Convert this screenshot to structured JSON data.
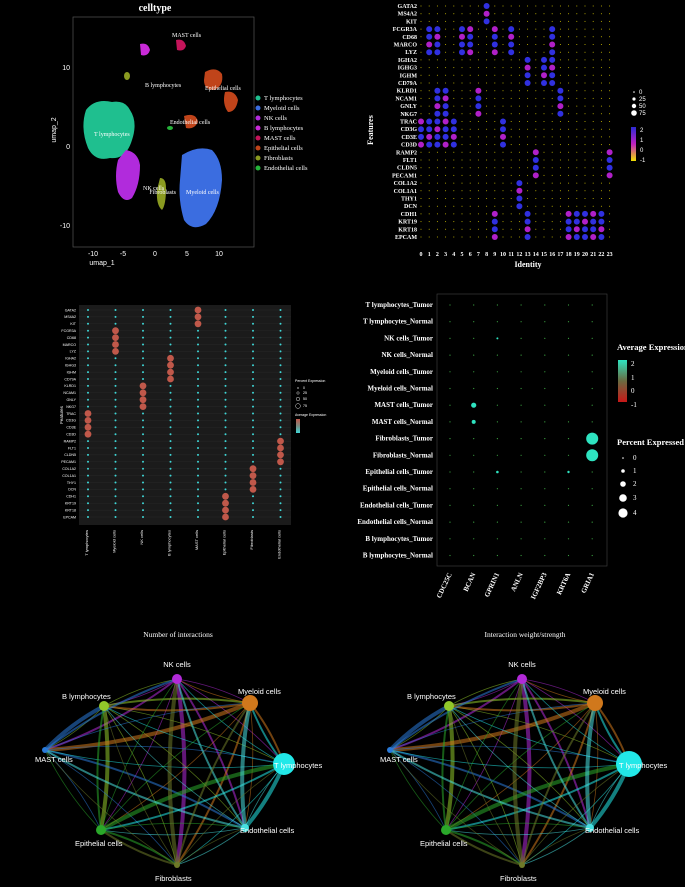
{
  "colors": {
    "background": "#000000",
    "celltypes": {
      "T lymphocytes": "#1fbf8f",
      "Myeloid cells": "#3b6de0",
      "NK cells": "#b12bdc",
      "B lymphocytes": "#c92ad8",
      "MAST cells": "#c4145a",
      "Epithelial cells": "#c0441a",
      "Fibroblasts": "#8a9a20",
      "Endothelial cells": "#25b33a"
    }
  },
  "panel_a": {
    "title": "celltype",
    "xlabel": "umap_1",
    "ylabel": "umap_2",
    "xticks": [
      "-10",
      "-5",
      "0",
      "5",
      "10"
    ],
    "yticks": [
      "10",
      "0",
      "-10"
    ],
    "cluster_labels": [
      "MAST cells",
      "B lymphocytes",
      "Epithelial cells",
      "Endothelial cells",
      "T lymphocytes",
      "NK cells",
      "Fibroblasts",
      "Myeloid cells"
    ],
    "legend": [
      "T lymphocytes",
      "Myeloid cells",
      "NK cells",
      "B lymphocytes",
      "MAST cells",
      "Epithelial cells",
      "Fibroblasts",
      "Endothelial cells"
    ]
  },
  "panel_b": {
    "xlabel": "Identity",
    "ylabel": "Features",
    "features": [
      "GATA2",
      "MS4A2",
      "KIT",
      "FCGR3A",
      "CD68",
      "MARCO",
      "LYZ",
      "IGHA2",
      "IGHG3",
      "IGHM",
      "CD79A",
      "KLRD1",
      "NCAM1",
      "GNLY",
      "NKG7",
      "TRAC",
      "CD3G",
      "CD3E",
      "CD3D",
      "RAMP2",
      "FLT1",
      "CLDN5",
      "PECAM1",
      "COL1A2",
      "COL1A1",
      "THY1",
      "DCN",
      "CDH1",
      "KRT19",
      "KRT18",
      "EPCAM"
    ],
    "identities": [
      "0",
      "1",
      "2",
      "3",
      "4",
      "5",
      "6",
      "7",
      "8",
      "9",
      "10",
      "11",
      "12",
      "13",
      "14",
      "15",
      "16",
      "17",
      "18",
      "19",
      "20",
      "21",
      "22",
      "23"
    ],
    "size_legend": [
      "0",
      "25",
      "50",
      "75"
    ],
    "color_legend": [
      "2",
      "1",
      "0",
      "-1"
    ]
  },
  "panel_c": {
    "ylabel": "Features",
    "features": [
      "GATA2",
      "MS4A2",
      "KIT",
      "FCGR3A",
      "CD68",
      "MARCO",
      "LYZ",
      "IGHA2",
      "IGHG3",
      "IGHM",
      "CD79A",
      "KLRD1",
      "NCAM1",
      "GNLY",
      "NKG7",
      "TRAC",
      "CD3G",
      "CD3E",
      "CD3D",
      "RAMP2",
      "FLT1",
      "CLDN5",
      "PECAM1",
      "COL1A2",
      "COL1A1",
      "THY1",
      "DCN",
      "CDH1",
      "KRT19",
      "KRT18",
      "EPCAM"
    ],
    "groups": [
      "T lymphocytes",
      "Myeloid cells",
      "NK cells",
      "B lymphocytes",
      "MAST cells",
      "Epithelial cells",
      "Fibroblasts",
      "Endothelial cells"
    ],
    "legend_percent_title": "Percent Expression",
    "legend_percent": [
      "0",
      "25",
      "50",
      "75"
    ],
    "legend_avg_title": "Average Expression"
  },
  "panel_d": {
    "rows": [
      "T lymphocytes_Tumor",
      "T lymphocytes_Normal",
      "NK cells_Tumor",
      "NK cells_Normal",
      "Myeloid cells_Tumor",
      "Myeloid cells_Normal",
      "MAST cells_Tumor",
      "MAST cells_Normal",
      "Fibroblasts_Tumor",
      "Fibroblasts_Normal",
      "Epithelial cells_Tumor",
      "Epithelial cells_Normal",
      "Endothelial cells_Tumor",
      "Endothelial cells_Normal",
      "B lymphocytes_Tumor",
      "B lymphocytes_Normal"
    ],
    "genes": [
      "CDC25C",
      "BCAN",
      "GPRIN1",
      "ANLN",
      "IGF2BP3",
      "KRT6A",
      "GRIA1"
    ],
    "avg_title": "Average Expression",
    "avg_ticks": [
      "2",
      "1",
      "0",
      "-1"
    ],
    "pct_title": "Percent Expressed",
    "pct_ticks": [
      "0",
      "1",
      "2",
      "3",
      "4"
    ]
  },
  "panel_e": {
    "title": "Number of interactions",
    "nodes": [
      "NK cells",
      "B lymphocytes",
      "Myeloid cells",
      "MAST cells",
      "T lymphocytes",
      "Epithelial cells",
      "Endothelial cells",
      "Fibroblasts"
    ]
  },
  "panel_f": {
    "title": "Interaction weight/strength",
    "nodes": [
      "NK cells",
      "B lymphocytes",
      "Myeloid cells",
      "MAST cells",
      "T lymphocytes",
      "Epithelial cells",
      "Endothelial cells",
      "Fibroblasts"
    ]
  }
}
